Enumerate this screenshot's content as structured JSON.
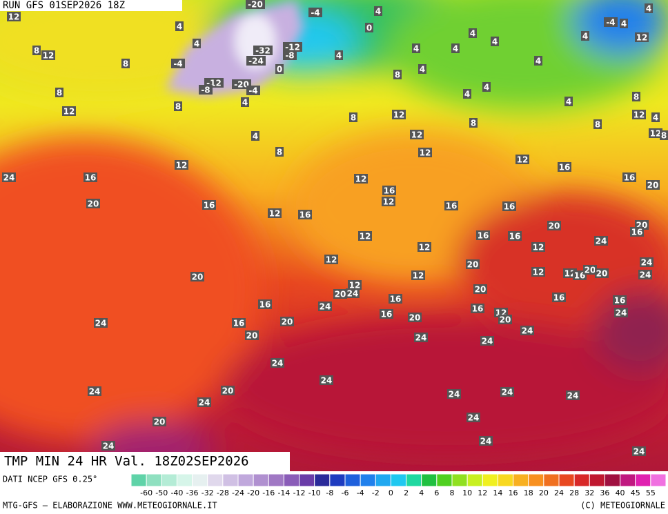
{
  "header": {
    "run": "RUN GFS 01SEP2026 18Z"
  },
  "map": {
    "labels": [
      12,
      -20,
      -4,
      4,
      4,
      -4,
      4,
      12,
      4,
      0,
      4,
      4,
      4,
      8,
      12,
      4,
      -32,
      -12,
      -8,
      -24,
      4,
      4,
      4,
      4,
      8,
      -4,
      0,
      8,
      4,
      -12,
      -8,
      -20,
      -4,
      4,
      4,
      8,
      4,
      8,
      12,
      12,
      4,
      8,
      12,
      8,
      4,
      8,
      8,
      12,
      12,
      8,
      4,
      8,
      12,
      12,
      12,
      16,
      24,
      16,
      12,
      16,
      16,
      20,
      12,
      20,
      16,
      16,
      16,
      12,
      16,
      20,
      20,
      16,
      12,
      16,
      16,
      24,
      12,
      12,
      12,
      20,
      24,
      20,
      12,
      12,
      12,
      16,
      20,
      20,
      24,
      12,
      20,
      24,
      20,
      16,
      24,
      16,
      16,
      16,
      16,
      12,
      24,
      16,
      20,
      20,
      20,
      24,
      16,
      24,
      20,
      24,
      24,
      24,
      24,
      20,
      24,
      24,
      24,
      24,
      24,
      24,
      20,
      24,
      24,
      24
    ]
  },
  "footer": {
    "title": "TMP MIN 24 HR Val. 18Z02SEP2026",
    "source": "DATI NCEP GFS 0.25°",
    "credit": "MTG-GFS — ELABORAZIONE WWW.METEOGIORNALE.IT",
    "copyright": "(C) METEOGIORNALE"
  },
  "legend": {
    "ticks": [
      -60,
      -50,
      -40,
      -36,
      -32,
      -28,
      -24,
      -20,
      -16,
      -14,
      -12,
      -10,
      -8,
      -6,
      -4,
      -2,
      0,
      2,
      4,
      6,
      8,
      10,
      12,
      14,
      16,
      18,
      20,
      24,
      28,
      32,
      36,
      40,
      45,
      55
    ],
    "colors": [
      "#5fd3a8",
      "#8fe0c0",
      "#b4ecd6",
      "#d6f5e9",
      "#e6f0f0",
      "#e0d8ec",
      "#d0c0e4",
      "#c0a8dc",
      "#b090d0",
      "#a078c4",
      "#8a5cb8",
      "#6a3ca8",
      "#2a2a9a",
      "#1e3cc0",
      "#1e60dc",
      "#2080ec",
      "#20a8f0",
      "#20c8f0",
      "#20d8a0",
      "#20c040",
      "#50d020",
      "#90e020",
      "#c8f020",
      "#f0f020",
      "#f8d820",
      "#f8b020",
      "#f89020",
      "#f07020",
      "#e84820",
      "#d82828",
      "#c01830",
      "#a01040",
      "#c01880",
      "#e020b0",
      "#f070e0"
    ]
  }
}
